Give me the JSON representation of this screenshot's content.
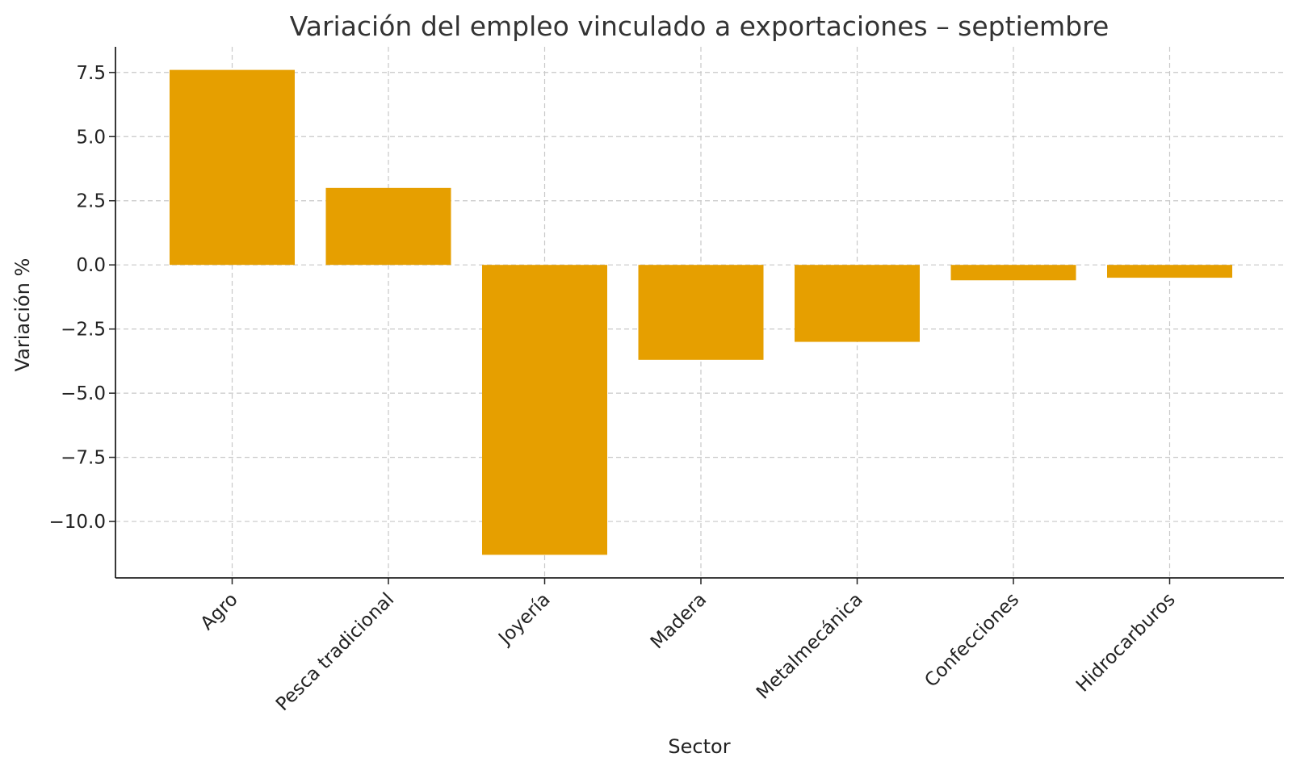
{
  "chart_data": {
    "type": "bar",
    "title": "Variación del empleo vinculado a exportaciones – septiembre",
    "xlabel": "Sector",
    "ylabel": "Variación %",
    "categories": [
      "Agro",
      "Pesca tradicional",
      "Joyería",
      "Madera",
      "Metalmecánica",
      "Confecciones",
      "Hidrocarburos"
    ],
    "values": [
      7.6,
      3.0,
      -11.3,
      -3.7,
      -3.0,
      -0.6,
      -0.5
    ],
    "ylim": [
      -12.2,
      8.5
    ],
    "yticks": [
      7.5,
      5.0,
      2.5,
      0.0,
      -2.5,
      -5.0,
      -7.5,
      -10.0
    ],
    "ytick_labels": [
      "7.5",
      "5.0",
      "2.5",
      "0.0",
      "−2.5",
      "−5.0",
      "−7.5",
      "−10.0"
    ],
    "grid": true,
    "bar_color": "#E69F00"
  }
}
